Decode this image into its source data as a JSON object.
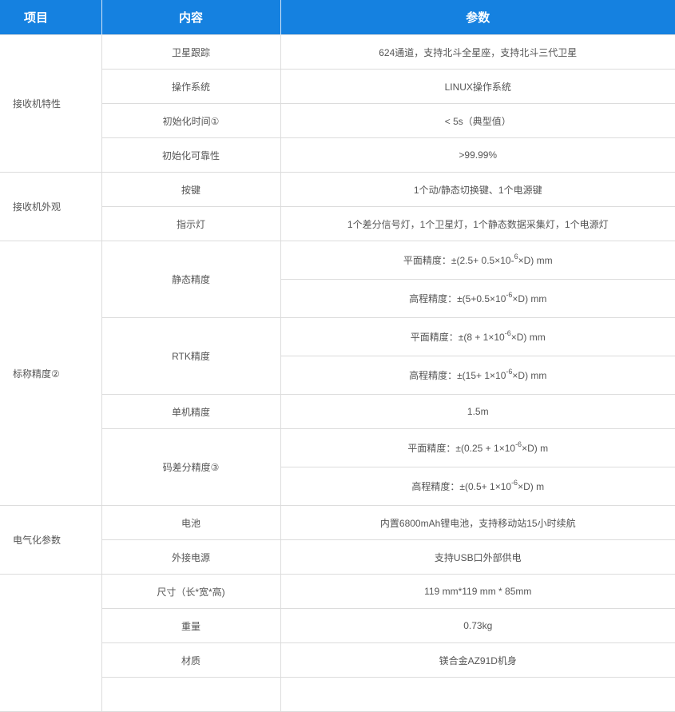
{
  "header": {
    "col1": "项目",
    "col2": "内容",
    "col3": "参数"
  },
  "colors": {
    "header_bg": "#1581e0",
    "header_text": "#ffffff",
    "text": "#555555",
    "border": "#dcdcdc"
  },
  "groups": [
    {
      "label": "接收机特性",
      "items": [
        {
          "name": "卫星跟踪",
          "values": [
            {
              "text": "624通道，支持北斗全星座，支持北斗三代卫星"
            }
          ]
        },
        {
          "name": "操作系统",
          "values": [
            {
              "text": "LINUX操作系统"
            }
          ]
        },
        {
          "name": "初始化时间①",
          "values": [
            {
              "text": "< 5s（典型值）"
            }
          ]
        },
        {
          "name": "初始化可靠性",
          "values": [
            {
              "text": ">99.99%"
            }
          ]
        }
      ]
    },
    {
      "label": "接收机外观",
      "items": [
        {
          "name": "按键",
          "values": [
            {
              "text": "1个动/静态切换键、1个电源键"
            }
          ]
        },
        {
          "name": "指示灯",
          "values": [
            {
              "text": "1个差分信号灯，1个卫星灯，1个静态数据采集灯，1个电源灯"
            }
          ]
        }
      ]
    },
    {
      "label": "标称精度②",
      "items": [
        {
          "name": "静态精度",
          "values": [
            {
              "pre": "平面精度：±(2.5+ 0.5×10-",
              "sup": "6",
              "post": "×D) mm"
            },
            {
              "pre": "高程精度：±(5+0.5×10",
              "sup": "-6",
              "post": "×D) mm"
            }
          ]
        },
        {
          "name": "RTK精度",
          "values": [
            {
              "pre": "平面精度：±(8 + 1×10",
              "sup": "-6",
              "post": "×D) mm"
            },
            {
              "pre": "高程精度：±(15+ 1×10",
              "sup": "-6",
              "post": "×D) mm"
            }
          ]
        },
        {
          "name": "单机精度",
          "values": [
            {
              "text": "1.5m"
            }
          ]
        },
        {
          "name": "码差分精度③",
          "values": [
            {
              "pre": "平面精度：±(0.25 + 1×10",
              "sup": "-6",
              "post": "×D) m"
            },
            {
              "pre": "高程精度：±(0.5+ 1×10",
              "sup": "-6",
              "post": "×D) m"
            }
          ]
        }
      ]
    },
    {
      "label": "电气化参数",
      "items": [
        {
          "name": "电池",
          "values": [
            {
              "text": "内置6800mAh锂电池，支持移动站15小时续航"
            }
          ]
        },
        {
          "name": "外接电源",
          "values": [
            {
              "text": "支持USB口外部供电"
            }
          ]
        }
      ]
    },
    {
      "label": "",
      "items": [
        {
          "name": "尺寸（长*宽*高)",
          "values": [
            {
              "text": "119 mm*119 mm * 85mm"
            }
          ]
        },
        {
          "name": "重量",
          "values": [
            {
              "text": "0.73kg"
            }
          ]
        },
        {
          "name": "材质",
          "values": [
            {
              "text": "镁合金AZ91D机身"
            }
          ]
        },
        {
          "name": "",
          "values": [
            {
              "text": ""
            }
          ]
        }
      ]
    }
  ]
}
